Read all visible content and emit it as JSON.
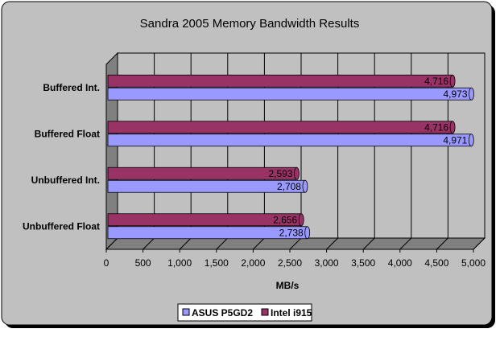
{
  "chart_data": {
    "type": "bar",
    "orientation": "horizontal",
    "title": "Sandra 2005 Memory Bandwidth Results",
    "xlabel": "MB/s",
    "ylabel": "",
    "categories": [
      "Buffered Int.",
      "Buffered Float",
      "Unbuffered Int.",
      "Unbuffered Float"
    ],
    "series": [
      {
        "name": "ASUS P5GD2",
        "values": [
          4973,
          4971,
          2708,
          2738
        ],
        "labels": [
          "4,973",
          "4,971",
          "2,708",
          "2,738"
        ],
        "color": "#9999ff"
      },
      {
        "name": "Intel i915",
        "values": [
          4716,
          4716,
          2593,
          2656
        ],
        "labels": [
          "4,716",
          "4,716",
          "2,593",
          "2,656"
        ],
        "color": "#993366"
      }
    ],
    "xlim": [
      0,
      5000
    ],
    "xticks": [
      "0",
      "500",
      "1,000",
      "1,500",
      "2,000",
      "2,500",
      "3,000",
      "3,500",
      "4,000",
      "4,500",
      "5,000"
    ],
    "grid": true,
    "legend_position": "bottom",
    "style": {
      "background": "#c0c0c0",
      "plot_wall": "#c0c0c0",
      "plot_floor": "#808080",
      "grid_color": "#000000",
      "series_colors": [
        "#9999ff",
        "#993366"
      ]
    }
  }
}
